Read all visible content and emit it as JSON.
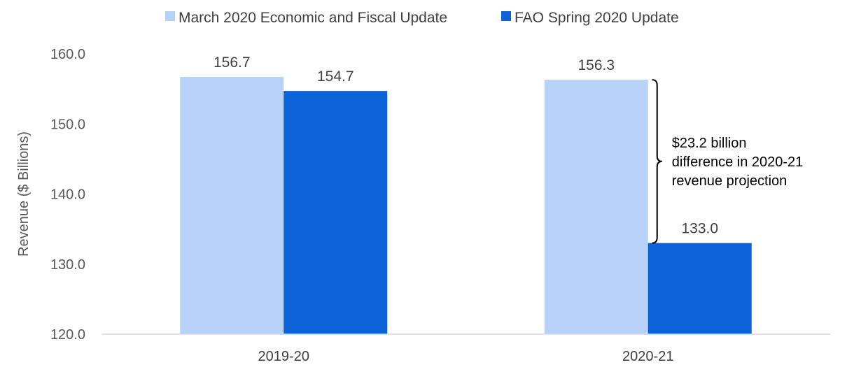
{
  "chart_data": {
    "type": "bar",
    "categories": [
      "2019-20",
      "2020-21"
    ],
    "series": [
      {
        "name": "March 2020 Economic and Fiscal Update",
        "values": [
          156.7,
          156.3
        ],
        "color": "#b7d1f7"
      },
      {
        "name": "FAO Spring 2020 Update",
        "values": [
          154.7,
          133.0
        ],
        "color": "#0c62d6"
      }
    ],
    "data_labels": [
      [
        "156.7",
        "156.3"
      ],
      [
        "154.7",
        "133.0"
      ]
    ],
    "ylabel": "Revenue ($ Billions)",
    "xlabel": "",
    "ylim": [
      120,
      160
    ],
    "yticks": [
      "120.0",
      "130.0",
      "140.0",
      "150.0",
      "160.0"
    ],
    "grid": false,
    "legend_position": "top",
    "annotation": {
      "category": "2020-21",
      "lines": [
        "$23.2 billion",
        "difference in 2020-21",
        "revenue projection"
      ]
    }
  }
}
